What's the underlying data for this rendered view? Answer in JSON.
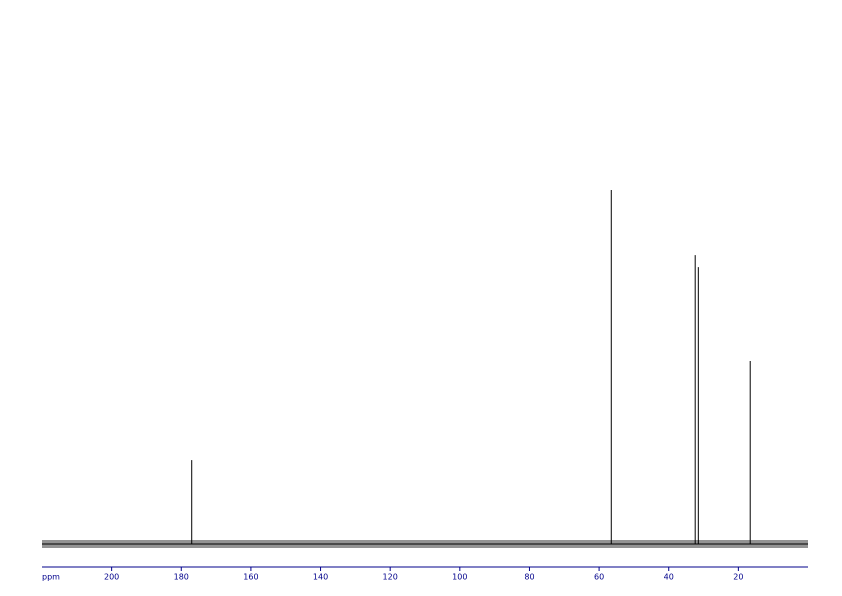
{
  "chart_data": {
    "type": "spectrum",
    "x_label": "ppm",
    "x": [
      177,
      56.5,
      32.4,
      31.5,
      16.6
    ],
    "values": [
      23.7,
      100,
      81.6,
      78.2,
      51.7
    ],
    "color": "#000000",
    "axis_color": "#00008b",
    "xlim": [
      220,
      0
    ],
    "ylim": [
      -6.5,
      100
    ],
    "xticks": [
      200,
      180,
      160,
      140,
      120,
      100,
      80,
      60,
      40,
      20
    ]
  }
}
